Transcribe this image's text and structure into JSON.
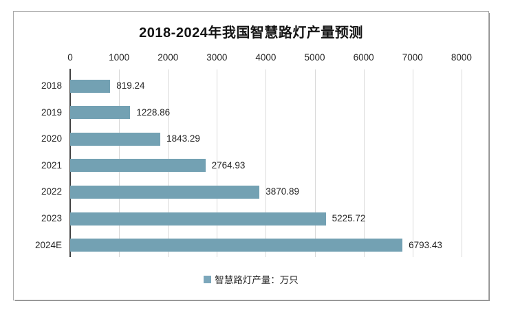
{
  "chart_data": {
    "type": "bar",
    "orientation": "horizontal",
    "title": "2018-2024年我国智慧路灯产量预测",
    "categories": [
      "2018",
      "2019",
      "2020",
      "2021",
      "2022",
      "2023",
      "2024E"
    ],
    "values": [
      819.24,
      1228.86,
      1843.29,
      2764.93,
      3870.89,
      5225.72,
      6793.43
    ],
    "value_labels": [
      "819.24",
      "1228.86",
      "1843.29",
      "2764.93",
      "3870.89",
      "5225.72",
      "6793.43"
    ],
    "x_axis": {
      "position": "top",
      "min": 0,
      "max": 8000,
      "tick_interval": 1000,
      "ticks": [
        0,
        1000,
        2000,
        3000,
        4000,
        5000,
        6000,
        7000,
        8000
      ],
      "tick_labels": [
        "0",
        "1000",
        "2000",
        "3000",
        "4000",
        "5000",
        "6000",
        "7000",
        "8000"
      ]
    },
    "xlabel": "",
    "ylabel": "",
    "grid": true,
    "legend": {
      "position": "bottom",
      "label": "智慧路灯产量：万只",
      "marker_color": "#7ca7bb"
    },
    "colors": {
      "bar": "#73a1b3",
      "gridline": "#d9d9d9",
      "axis_line": "#3f3f3f",
      "text": "#262626",
      "title_text": "#141414",
      "frame_border": "#aaaaaa",
      "background": "#ffffff"
    }
  }
}
